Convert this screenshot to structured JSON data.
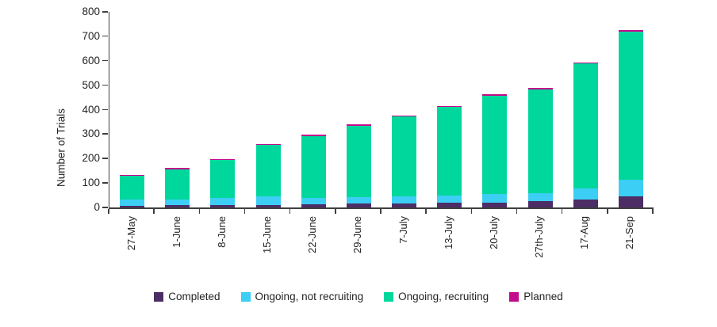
{
  "chart_data": {
    "type": "bar",
    "stacked": true,
    "title": "",
    "xlabel": "",
    "ylabel": "Number of Trials",
    "ylim": [
      0,
      800
    ],
    "yticks": [
      0,
      100,
      200,
      300,
      400,
      500,
      600,
      700,
      800
    ],
    "grid": false,
    "legend_position": "bottom",
    "categories": [
      "27-May",
      "1-June",
      "8-June",
      "15-June",
      "22-June",
      "29-June",
      "7-July",
      "13-July",
      "20-July",
      "27th-July",
      "17-Aug",
      "21-Sep"
    ],
    "series": [
      {
        "name": "Completed",
        "color": "#4c2d66",
        "values": [
          8,
          9,
          10,
          10,
          14,
          16,
          16,
          19,
          19,
          26,
          32,
          45
        ]
      },
      {
        "name": "Ongoing, not recruiting",
        "color": "#3ccef4",
        "values": [
          25,
          25,
          30,
          37,
          25,
          26,
          29,
          29,
          36,
          32,
          45,
          68
        ]
      },
      {
        "name": "Ongoing, recruiting",
        "color": "#00d79c",
        "values": [
          96,
          123,
          155,
          208,
          253,
          293,
          327,
          363,
          402,
          426,
          512,
          607
        ]
      },
      {
        "name": "Planned",
        "color": "#c40a8c",
        "values": [
          4,
          4,
          4,
          5,
          5,
          5,
          5,
          5,
          5,
          5,
          5,
          5
        ]
      }
    ]
  },
  "style_colors": {
    "axis": "#3f3f3f",
    "text": "#242424",
    "background": "#ffffff"
  }
}
